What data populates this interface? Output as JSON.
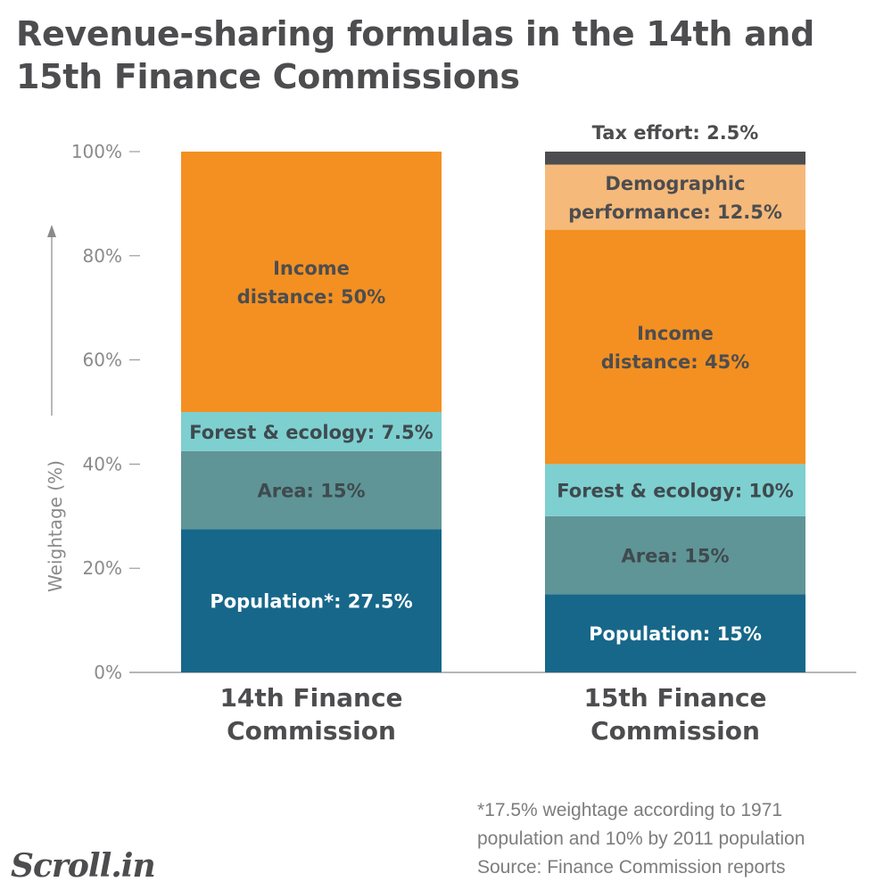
{
  "title_line1": "Revenue-sharing formulas in the 14th and",
  "title_line2": "15th Finance Commissions",
  "chart_data": {
    "type": "bar",
    "stacked": true,
    "title": "Revenue-sharing formulas in the 14th and 15th Finance Commissions",
    "ylabel": "Weightage (%)",
    "ylim": [
      0,
      100
    ],
    "yticks": [
      "0%",
      "20%",
      "40%",
      "60%",
      "80%",
      "100%"
    ],
    "grid": false,
    "categories": [
      [
        "14th Finance",
        "Commission"
      ],
      [
        "15th Finance",
        "Commission"
      ]
    ],
    "series": [
      {
        "name": "Population",
        "color": "#17678a",
        "text_color": "#ffffff",
        "values": [
          27.5,
          15
        ],
        "labels": [
          [
            "Population*: 27.5%"
          ],
          [
            "Population: 15%"
          ]
        ]
      },
      {
        "name": "Area",
        "color": "#5f9597",
        "text_color": "#3f4a4e",
        "values": [
          15,
          15
        ],
        "labels": [
          [
            "Area: 15%"
          ],
          [
            "Area: 15%"
          ]
        ]
      },
      {
        "name": "Forest & ecology",
        "color": "#7ecfd0",
        "text_color": "#3f4a4e",
        "values": [
          7.5,
          10
        ],
        "labels": [
          [
            "Forest & ecology: 7.5%"
          ],
          [
            "Forest & ecology: 10%"
          ]
        ]
      },
      {
        "name": "Income distance",
        "color": "#f39021",
        "text_color": "#4d4d4f",
        "values": [
          50,
          45
        ],
        "labels": [
          [
            "Income",
            "distance: 50%"
          ],
          [
            "Income",
            "distance: 45%"
          ]
        ]
      },
      {
        "name": "Demographic performance",
        "color": "#f5b97a",
        "text_color": "#4d4d4f",
        "values": [
          0,
          12.5
        ],
        "labels": [
          [],
          [
            "Demographic",
            "performance: 12.5%"
          ]
        ]
      },
      {
        "name": "Tax effort",
        "color": "#4d4d4f",
        "text_color": "#4d4d4f",
        "values": [
          0,
          2.5
        ],
        "labels": [
          [],
          [
            "Tax effort: 2.5%"
          ]
        ],
        "label_outside": true
      }
    ]
  },
  "footnote": {
    "line1": "*17.5% weightage according to 1971",
    "line2": "population and 10% by 2011 population",
    "line3": "Source:  Finance Commission reports"
  },
  "logo_text": "Scroll.in"
}
